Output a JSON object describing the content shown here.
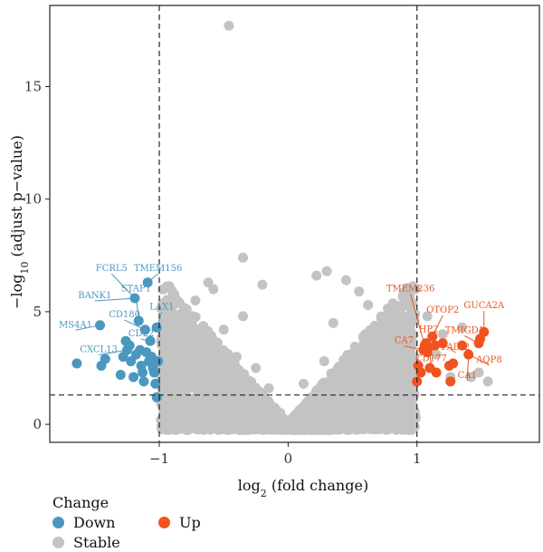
{
  "chart_data": {
    "type": "scatter",
    "title": "",
    "xlabel": "log2 (fold change)",
    "ylabel": "−log10 (adjust p−value)",
    "xlim": [
      -1.85,
      1.95
    ],
    "ylim": [
      -0.8,
      18.6
    ],
    "x_ticks": [
      "−1",
      "0",
      "1"
    ],
    "y_ticks": [
      "0",
      "5",
      "10",
      "15"
    ],
    "thresholds": {
      "x": [
        -1,
        1
      ],
      "y": 1.3
    },
    "grid": false,
    "legend": {
      "title": "Change",
      "placement": "bottom-left",
      "items": [
        {
          "name": "Down",
          "color": "#4a98bf"
        },
        {
          "name": "Stable",
          "color": "#c3c3c3"
        },
        {
          "name": "Up",
          "color": "#f0531f"
        }
      ]
    },
    "series": [
      {
        "name": "Down",
        "color": "#4a98bf",
        "points": [
          [
            -1.64,
            2.7
          ],
          [
            -1.46,
            4.4
          ],
          [
            -1.42,
            2.9
          ],
          [
            -1.45,
            2.6
          ],
          [
            -1.3,
            2.2
          ],
          [
            -1.28,
            3.0
          ],
          [
            -1.26,
            3.7
          ],
          [
            -1.25,
            3.3
          ],
          [
            -1.23,
            3.5
          ],
          [
            -1.22,
            2.8
          ],
          [
            -1.2,
            2.1
          ],
          [
            -1.19,
            5.6
          ],
          [
            -1.18,
            3.1
          ],
          [
            -1.16,
            4.6
          ],
          [
            -1.15,
            3.3
          ],
          [
            -1.14,
            2.6
          ],
          [
            -1.13,
            2.3
          ],
          [
            -1.12,
            1.9
          ],
          [
            -1.11,
            4.2
          ],
          [
            -1.1,
            3.2
          ],
          [
            -1.09,
            6.3
          ],
          [
            -1.08,
            2.8
          ],
          [
            -1.07,
            3.7
          ],
          [
            -1.06,
            3.0
          ],
          [
            -1.05,
            2.5
          ],
          [
            -1.04,
            2.3
          ],
          [
            -1.03,
            1.8
          ],
          [
            -1.02,
            4.3
          ],
          [
            -1.02,
            1.2
          ],
          [
            -1.01,
            2.8
          ]
        ]
      },
      {
        "name": "Up",
        "color": "#f0531f",
        "points": [
          [
            1.0,
            1.9
          ],
          [
            1.01,
            2.6
          ],
          [
            1.03,
            2.3
          ],
          [
            1.05,
            3.3
          ],
          [
            1.06,
            3.5
          ],
          [
            1.07,
            3.6
          ],
          [
            1.08,
            3.2
          ],
          [
            1.09,
            3.4
          ],
          [
            1.1,
            2.5
          ],
          [
            1.12,
            3.9
          ],
          [
            1.14,
            3.5
          ],
          [
            1.15,
            2.3
          ],
          [
            1.2,
            3.6
          ],
          [
            1.25,
            2.6
          ],
          [
            1.26,
            1.9
          ],
          [
            1.28,
            2.7
          ],
          [
            1.35,
            3.5
          ],
          [
            1.4,
            3.1
          ],
          [
            1.48,
            3.6
          ],
          [
            1.49,
            3.8
          ],
          [
            1.52,
            4.1
          ]
        ]
      },
      {
        "name": "Stable",
        "color": "#c3c3c3",
        "points": [
          [
            -0.46,
            17.7
          ],
          [
            -0.35,
            7.4
          ],
          [
            -0.62,
            6.3
          ],
          [
            -0.58,
            6.0
          ],
          [
            -0.72,
            5.5
          ],
          [
            -0.9,
            5.3
          ],
          [
            -0.2,
            6.2
          ],
          [
            0.22,
            6.6
          ],
          [
            0.3,
            6.8
          ],
          [
            0.45,
            6.4
          ],
          [
            0.55,
            5.9
          ],
          [
            0.62,
            5.3
          ],
          [
            0.84,
            5.1
          ],
          [
            0.95,
            4.4
          ],
          [
            0.98,
            3.0
          ],
          [
            -0.98,
            5.1
          ],
          [
            -0.97,
            1.0
          ],
          [
            -0.95,
            2.2
          ],
          [
            0.9,
            2.8
          ],
          [
            0.92,
            1.4
          ],
          [
            0.35,
            4.5
          ],
          [
            -0.35,
            4.8
          ],
          [
            -0.5,
            4.2
          ],
          [
            0.6,
            4.0
          ],
          [
            -0.7,
            3.5
          ],
          [
            0.75,
            3.2
          ],
          [
            -0.8,
            2.4
          ],
          [
            0.82,
            2.0
          ],
          [
            -0.15,
            1.6
          ],
          [
            0.12,
            1.8
          ],
          [
            -0.06,
            0.5
          ],
          [
            0.08,
            0.4
          ],
          [
            -0.25,
            2.5
          ],
          [
            0.28,
            2.8
          ],
          [
            -0.4,
            3.0
          ],
          [
            0.48,
            3.1
          ],
          [
            -0.55,
            1.9
          ],
          [
            0.65,
            2.2
          ],
          [
            -0.85,
            1.3
          ],
          [
            0.87,
            1.5
          ],
          [
            -0.03,
            0.1
          ],
          [
            0.02,
            0.05
          ],
          [
            1.08,
            4.8
          ],
          [
            1.15,
            3.1
          ],
          [
            1.26,
            2.1
          ],
          [
            1.42,
            2.1
          ],
          [
            1.48,
            2.3
          ],
          [
            1.55,
            1.9
          ],
          [
            1.2,
            4.0
          ],
          [
            1.35,
            4.3
          ]
        ]
      }
    ],
    "annotations": [
      {
        "text": "FCRL5",
        "side": "down",
        "pt": [
          -1.19,
          5.6
        ],
        "label": [
          -1.37,
          6.8
        ]
      },
      {
        "text": "TMEM156",
        "side": "down",
        "pt": [
          -1.09,
          6.3
        ],
        "label": [
          -1.01,
          6.8
        ]
      },
      {
        "text": "STAP1",
        "side": "down",
        "pt": [
          -1.16,
          4.6
        ],
        "label": [
          -1.18,
          5.9
        ]
      },
      {
        "text": "BANK1",
        "side": "down",
        "pt": [
          -1.19,
          5.6
        ],
        "label": [
          -1.5,
          5.6
        ]
      },
      {
        "text": "LAX1",
        "side": "down",
        "pt": [
          -1.02,
          4.3
        ],
        "label": [
          -0.98,
          5.1
        ]
      },
      {
        "text": "CD180",
        "side": "down",
        "pt": [
          -1.11,
          4.2
        ],
        "label": [
          -1.27,
          4.75
        ]
      },
      {
        "text": "MS4A1",
        "side": "down",
        "pt": [
          -1.46,
          4.4
        ],
        "label": [
          -1.65,
          4.3
        ]
      },
      {
        "text": "CD22",
        "side": "down",
        "pt": [
          -1.07,
          3.7
        ],
        "label": [
          -1.14,
          3.9
        ]
      },
      {
        "text": "CXCL13",
        "side": "down",
        "pt": [
          -1.25,
          3.3
        ],
        "label": [
          -1.47,
          3.2
        ]
      },
      {
        "text": "TMEM236",
        "side": "up",
        "pt": [
          1.06,
          3.5
        ],
        "label": [
          0.95,
          5.9
        ]
      },
      {
        "text": "OTOP2",
        "side": "up",
        "pt": [
          1.12,
          3.9
        ],
        "label": [
          1.2,
          4.95
        ]
      },
      {
        "text": "GUCA2A",
        "side": "up",
        "pt": [
          1.52,
          4.1
        ],
        "label": [
          1.52,
          5.15
        ]
      },
      {
        "text": "HP2",
        "side": "up",
        "pt": [
          1.09,
          3.4
        ],
        "label": [
          1.09,
          4.1
        ]
      },
      {
        "text": "TMIGD1",
        "side": "up",
        "pt": [
          1.48,
          3.6
        ],
        "label": [
          1.37,
          4.05
        ]
      },
      {
        "text": "CA7",
        "side": "up",
        "pt": [
          1.05,
          3.3
        ],
        "label": [
          0.9,
          3.6
        ]
      },
      {
        "text": "PADI2",
        "side": "up",
        "pt": [
          1.2,
          3.6
        ],
        "label": [
          1.3,
          3.3
        ]
      },
      {
        "text": "AQP8",
        "side": "up",
        "pt": [
          1.4,
          3.1
        ],
        "label": [
          1.56,
          2.75
        ]
      },
      {
        "text": "CD177",
        "side": "up",
        "pt": [
          1.09,
          3.4
        ],
        "label": [
          1.11,
          2.8
        ]
      },
      {
        "text": "CA1",
        "side": "up",
        "pt": [
          1.4,
          3.1
        ],
        "label": [
          1.39,
          2.05
        ]
      }
    ]
  }
}
